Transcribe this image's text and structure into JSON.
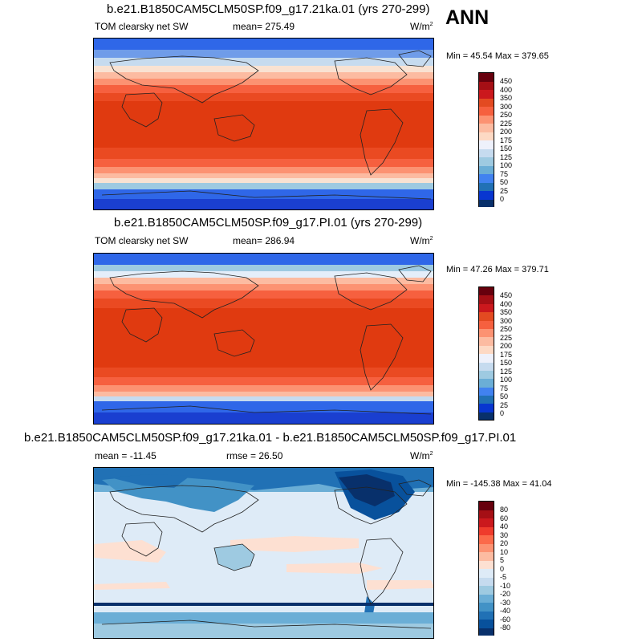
{
  "season": "ANN",
  "panels": [
    {
      "title": "b.e21.B1850CAM5CLM50SP.f09_g17.21ka.01 (yrs 270-299)",
      "variable": "TOM clearsky net SW",
      "stat1": "mean= 275.49",
      "stat2": "",
      "units": "W/m",
      "units_sup": "2",
      "minmax": "Min =  45.54 Max = 379.65",
      "colorbar_labels": [
        "450",
        "400",
        "350",
        "300",
        "250",
        "225",
        "200",
        "175",
        "150",
        "125",
        "100",
        "75",
        "50",
        "25",
        "0"
      ]
    },
    {
      "title": "b.e21.B1850CAM5CLM50SP.f09_g17.PI.01 (yrs 270-299)",
      "variable": "TOM clearsky net SW",
      "stat1": "mean= 286.94",
      "stat2": "",
      "units": "W/m",
      "units_sup": "2",
      "minmax": "Min =  47.26 Max = 379.71",
      "colorbar_labels": [
        "450",
        "400",
        "350",
        "300",
        "250",
        "225",
        "200",
        "175",
        "150",
        "125",
        "100",
        "75",
        "50",
        "25",
        "0"
      ]
    },
    {
      "title": "b.e21.B1850CAM5CLM50SP.f09_g17.21ka.01 - b.e21.B1850CAM5CLM50SP.f09_g17.PI.01",
      "variable": "",
      "stat1": "mean = -11.45",
      "stat2": "rmse =  26.50",
      "units": "W/m",
      "units_sup": "2",
      "minmax": "Min = -145.38 Max =  41.04",
      "colorbar_labels": [
        "80",
        "60",
        "40",
        "30",
        "20",
        "10",
        "5",
        "0",
        "-5",
        "-10",
        "-20",
        "-30",
        "-40",
        "-60",
        "-80"
      ]
    }
  ],
  "colors": {
    "abs_scale": [
      "#67000d",
      "#a50f15",
      "#cb181d",
      "#e34a21",
      "#f6603f",
      "#fc9272",
      "#fcbba1",
      "#fdd9c4",
      "#eef1fb",
      "#c6dbef",
      "#9ecae1",
      "#6baed6",
      "#4182f0",
      "#2171b5",
      "#0836d0",
      "#08306b"
    ],
    "diff_scale": [
      "#67000d",
      "#a50f15",
      "#cb181d",
      "#ef3b2c",
      "#fb6a4a",
      "#fc9272",
      "#fcbba1",
      "#fde0d2",
      "#deebf7",
      "#c6dbef",
      "#9ecae1",
      "#6baed6",
      "#4292c6",
      "#2171b5",
      "#08519c",
      "#08306b"
    ]
  }
}
